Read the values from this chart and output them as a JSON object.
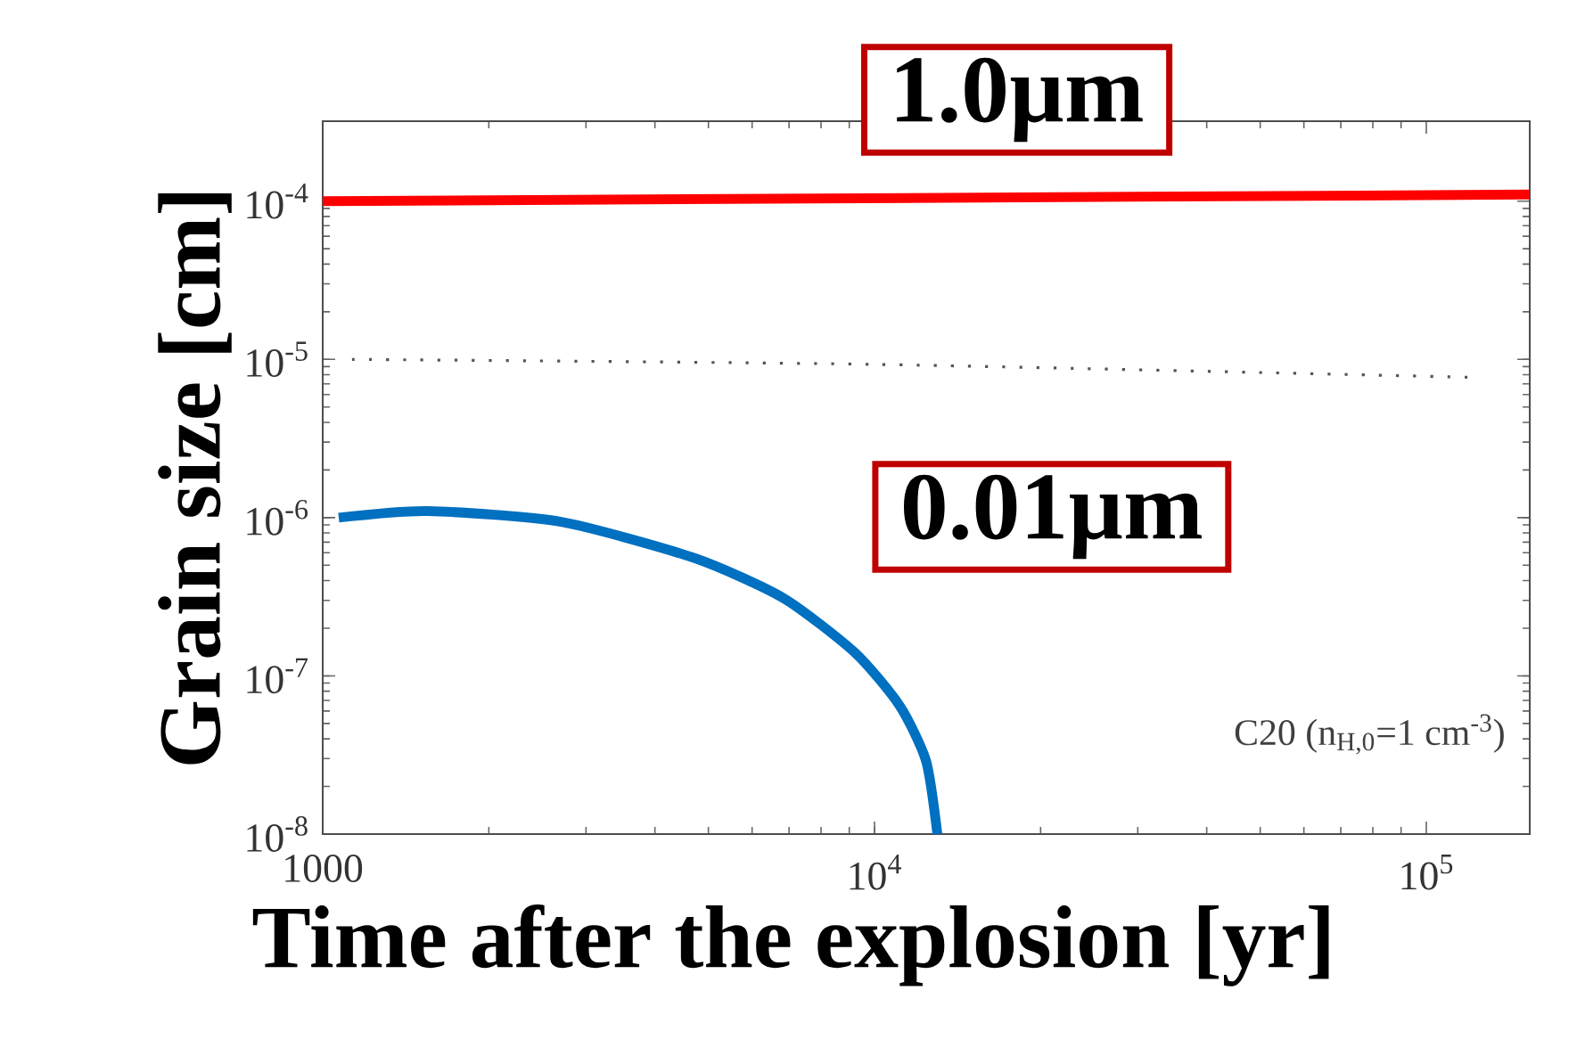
{
  "chart_data": {
    "type": "line",
    "xlabel": "Time after the explosion [yr]",
    "ylabel": "Grain size [cm]",
    "log": "xy",
    "grid": false,
    "marker": "none",
    "xlim": [
      1000,
      154000
    ],
    "ylim": [
      1e-08,
      0.00032
    ],
    "xticks": [
      1000,
      {
        "value": 10000,
        "label": "10$^{4}$"
      },
      {
        "value": 100000,
        "label": "10$^{5}$"
      }
    ],
    "yticks": [
      {
        "value": 1e-08,
        "label": "10$^{-8}$"
      },
      {
        "value": 1e-07,
        "label": "10$^{-7}$"
      },
      {
        "value": 1e-06,
        "label": "10$^{-6}$"
      },
      {
        "value": 1e-05,
        "label": "10$^{-5}$"
      },
      {
        "value": 0.0001,
        "label": "10$^{-4}$"
      }
    ],
    "series": [
      {
        "color": "#ff0000",
        "line_style": "solid",
        "x": [
          1000,
          154000
        ],
        "values": [
          0.0001,
          0.00011
        ]
      },
      {
        "color": "#555555",
        "line_style": "dotted",
        "x": [
          1130,
          10000,
          121000
        ],
        "values": [
          1e-05,
          9.3e-06,
          7.7e-06
        ]
      },
      {
        "color": "#0070c0",
        "line_style": "solid",
        "x": [
          1069,
          1550,
          2705,
          4720,
          6840,
          9220,
          11100,
          12400,
          13000
        ],
        "values": [
          1e-06,
          1.1e-06,
          9.4e-07,
          5.55e-07,
          3.1e-07,
          1.4e-07,
          6.5e-08,
          2.9e-08,
          1e-08
        ]
      }
    ],
    "annotations": [
      "1.0µm",
      "0.01µm",
      "C20 (n$_{H,0}$=1 cm$^{-3}$)"
    ]
  }
}
